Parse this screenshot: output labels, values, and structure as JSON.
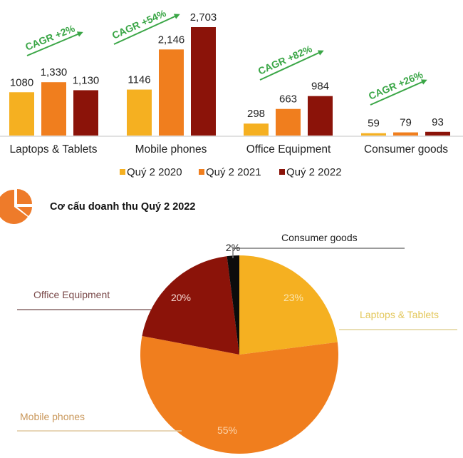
{
  "colors": {
    "q2_2020": "#f5b021",
    "q2_2021": "#f07e1e",
    "q2_2022": "#8b1309",
    "consumer_slice": "#0c0c0c",
    "cagr_green": "#3aa646",
    "axis": "#cfcfcf",
    "pie_icon": "#ee7b2a"
  },
  "bar_chart": {
    "categories": [
      "Laptops & Tablets",
      "Mobile phones",
      "Office Equipment",
      "Consumer goods"
    ],
    "value_labels": [
      [
        "1080",
        "1,330",
        "1,130"
      ],
      [
        "1146",
        "2,146",
        "2,703"
      ],
      [
        "298",
        "663",
        "984"
      ],
      [
        "59",
        "79",
        "93"
      ]
    ],
    "cagr": [
      "CAGR +2%",
      "CAGR +54%",
      "CAGR +82%",
      "CAGR +26%"
    ],
    "legend": [
      "Quý 2 2020",
      "Quý 2 2021",
      "Quý 2 2022"
    ]
  },
  "pie_chart": {
    "title": "Cơ cấu doanh thu Quý 2 2022",
    "slices": [
      {
        "label": "Laptops & Tablets",
        "pct": "23%"
      },
      {
        "label": "Mobile phones",
        "pct": "55%"
      },
      {
        "label": "Office Equipment",
        "pct": "20%"
      },
      {
        "label": "Consumer goods",
        "pct": "2%"
      }
    ]
  },
  "chart_data": [
    {
      "type": "bar",
      "title": "",
      "xlabel": "",
      "ylabel": "",
      "categories": [
        "Laptops & Tablets",
        "Mobile phones",
        "Office Equipment",
        "Consumer goods"
      ],
      "series": [
        {
          "name": "Quý 2 2020",
          "values": [
            1080,
            1146,
            298,
            59
          ]
        },
        {
          "name": "Quý 2 2021",
          "values": [
            1330,
            2146,
            663,
            79
          ]
        },
        {
          "name": "Quý 2 2022",
          "values": [
            1130,
            2703,
            984,
            93
          ]
        }
      ],
      "annotations": [
        "CAGR +2%",
        "CAGR +54%",
        "CAGR +82%",
        "CAGR +26%"
      ],
      "legend_position": "bottom",
      "grid": false,
      "ylim": [
        0,
        2800
      ]
    },
    {
      "type": "pie",
      "title": "Cơ cấu doanh thu Quý 2 2022",
      "categories": [
        "Laptops & Tablets",
        "Mobile phones",
        "Office Equipment",
        "Consumer goods"
      ],
      "values": [
        23,
        55,
        20,
        2
      ],
      "unit": "%"
    }
  ]
}
